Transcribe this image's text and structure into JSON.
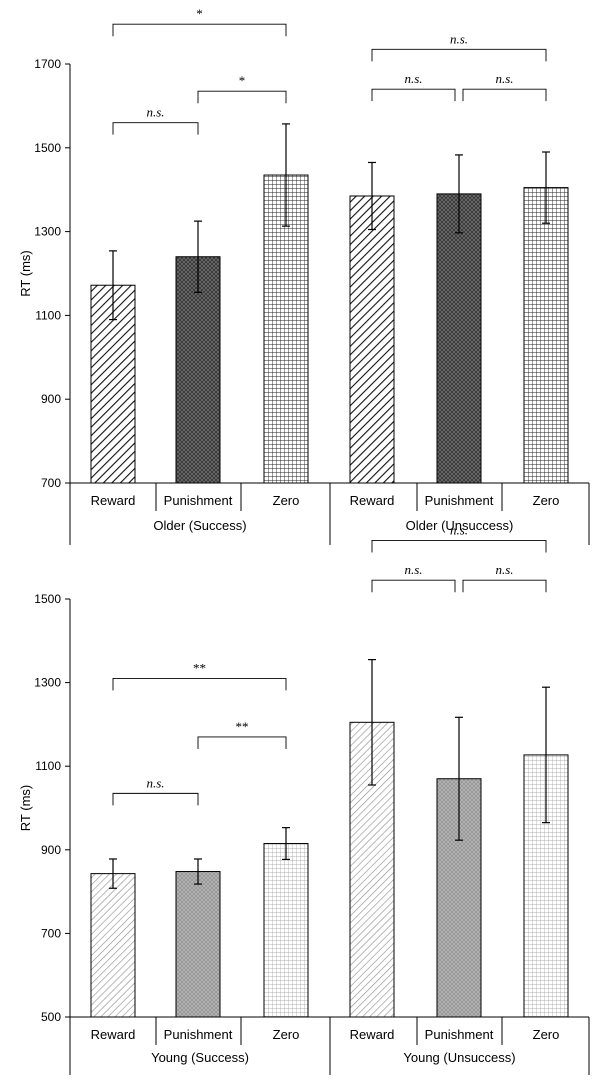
{
  "chart_data": [
    {
      "type": "bar",
      "ylabel": "RT (ms)",
      "ylim": [
        700,
        1700
      ],
      "yticks": [
        700,
        900,
        1100,
        1300,
        1500,
        1700
      ],
      "categories": [
        "Reward",
        "Punishment",
        "Zero",
        "Reward",
        "Punishment",
        "Zero"
      ],
      "groups": [
        {
          "label": "Older (Success)",
          "categories": [
            "Reward",
            "Punishment",
            "Zero"
          ]
        },
        {
          "label": "Older (Unsuccess)",
          "categories": [
            "Reward",
            "Punishment",
            "Zero"
          ]
        }
      ],
      "values": [
        1172,
        1240,
        1435,
        1385,
        1390,
        1405
      ],
      "errors": [
        82,
        85,
        122,
        80,
        93,
        85
      ],
      "patterns": [
        "diagonal",
        "crosshatch-dark",
        "grid",
        "diagonal",
        "crosshatch-dark",
        "grid"
      ],
      "significance": [
        {
          "from": 0,
          "to": 1,
          "label": "n.s.",
          "y": 1560
        },
        {
          "from": 1,
          "to": 2,
          "label": "*",
          "y": 1635
        },
        {
          "from": 0,
          "to": 2,
          "label": "*",
          "y": 1795
        },
        {
          "from": 3,
          "to": 4,
          "label": "n.s.",
          "y": 1640
        },
        {
          "from": 4,
          "to": 5,
          "label": "n.s.",
          "y": 1640
        },
        {
          "from": 3,
          "to": 5,
          "label": "n.s.",
          "y": 1735
        }
      ]
    },
    {
      "type": "bar",
      "ylabel": "RT (ms)",
      "ylim": [
        500,
        1500
      ],
      "yticks": [
        500,
        700,
        900,
        1100,
        1300,
        1500
      ],
      "categories": [
        "Reward",
        "Punishment",
        "Zero",
        "Reward",
        "Punishment",
        "Zero"
      ],
      "groups": [
        {
          "label": "Young (Success)",
          "categories": [
            "Reward",
            "Punishment",
            "Zero"
          ]
        },
        {
          "label": "Young (Unsuccess)",
          "categories": [
            "Reward",
            "Punishment",
            "Zero"
          ]
        }
      ],
      "values": [
        843,
        848,
        915,
        1205,
        1070,
        1127
      ],
      "errors": [
        35,
        30,
        38,
        150,
        147,
        162
      ],
      "patterns": [
        "diagonal-light",
        "crosshatch-light",
        "grid-light",
        "diagonal-light",
        "crosshatch-light",
        "grid-light"
      ],
      "significance": [
        {
          "from": 0,
          "to": 1,
          "label": "n.s.",
          "y": 1035
        },
        {
          "from": 1,
          "to": 2,
          "label": "**",
          "y": 1170
        },
        {
          "from": 0,
          "to": 2,
          "label": "**",
          "y": 1310
        },
        {
          "from": 3,
          "to": 4,
          "label": "n.s.",
          "y": 1545
        },
        {
          "from": 4,
          "to": 5,
          "label": "n.s.",
          "y": 1545
        },
        {
          "from": 3,
          "to": 5,
          "label": "n.s.",
          "y": 1640
        }
      ]
    }
  ]
}
